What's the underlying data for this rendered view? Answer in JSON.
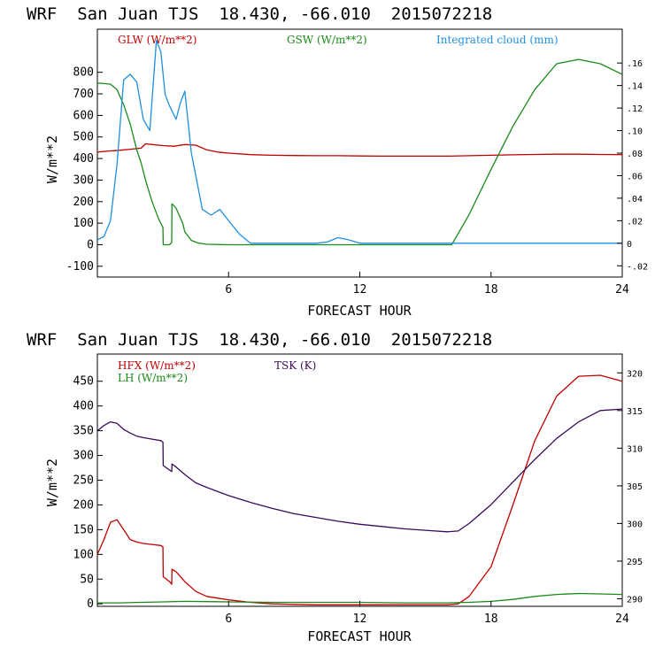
{
  "colors": {
    "red": "#c00000",
    "green": "#1a8a1a",
    "blue": "#1f8fe0",
    "purple": "#3a0a5a"
  },
  "chart_data": [
    {
      "type": "line",
      "title": "WRF  San Juan TJS  18.430, -66.010  2015072218",
      "xlabel": "FORECAST HOUR",
      "ylabel": "W/m**2",
      "xlim": [
        0,
        24
      ],
      "ylim": [
        -150,
        1000
      ],
      "y2lim": [
        -0.03,
        0.19
      ],
      "xticks": [
        6,
        12,
        18,
        24
      ],
      "xtick_labels": [
        "6",
        "12",
        "18",
        "24"
      ],
      "yticks": [
        -100,
        0,
        100,
        200,
        300,
        400,
        500,
        600,
        700,
        800
      ],
      "ytick_labels": [
        "-100",
        "0",
        "100",
        "200",
        "300",
        "400",
        "500",
        "600",
        "700",
        "800"
      ],
      "y2ticks": [
        -0.02,
        0,
        0.02,
        0.04,
        0.06,
        0.08,
        0.1,
        0.12,
        0.14,
        0.16
      ],
      "y2tick_labels": [
        "-.02",
        "0",
        ".02",
        ".04",
        ".06",
        ".08",
        ".10",
        ".12",
        ".14",
        ".16"
      ],
      "series": [
        {
          "name": "GLW (W/m**2)",
          "color": "#c00000",
          "axis": "left",
          "x": [
            0,
            0.5,
            1,
            1.5,
            2,
            2.2,
            2.5,
            3,
            3.5,
            4,
            4.5,
            5,
            5.5,
            6,
            7,
            8,
            9,
            10,
            11,
            12,
            13,
            14,
            15,
            16,
            17,
            18,
            19,
            20,
            21,
            22,
            23,
            24
          ],
          "y": [
            430,
            435,
            438,
            443,
            448,
            468,
            465,
            460,
            457,
            465,
            462,
            440,
            430,
            425,
            418,
            415,
            414,
            413,
            413,
            412,
            411,
            411,
            411,
            411,
            413,
            415,
            417,
            419,
            420,
            420,
            419,
            418
          ]
        },
        {
          "name": "GSW (W/m**2)",
          "color": "#1a8a1a",
          "axis": "left",
          "x": [
            0,
            0.3,
            0.6,
            0.9,
            1.2,
            1.5,
            1.8,
            2,
            2.2,
            2.5,
            2.8,
            3.0,
            3.01,
            3.3,
            3.4,
            3.41,
            3.6,
            3.9,
            4.0,
            4.3,
            4.6,
            5,
            6,
            8,
            10,
            12,
            14,
            16,
            16.2,
            17,
            18,
            19,
            20,
            21,
            22,
            23,
            24
          ],
          "y": [
            750,
            748,
            745,
            720,
            650,
            560,
            440,
            380,
            300,
            200,
            120,
            80,
            0,
            0,
            10,
            190,
            170,
            100,
            60,
            20,
            8,
            2,
            0,
            0,
            0,
            0,
            0,
            0,
            0,
            140,
            350,
            550,
            720,
            840,
            860,
            840,
            790
          ]
        },
        {
          "name": "Integrated cloud (mm)",
          "color": "#1f8fe0",
          "axis": "right",
          "x": [
            0,
            0.3,
            0.6,
            0.9,
            1.2,
            1.5,
            1.8,
            2.1,
            2.4,
            2.7,
            2.9,
            3.1,
            3.3,
            3.6,
            3.8,
            4.0,
            4.3,
            4.5,
            4.8,
            5.2,
            5.6,
            6,
            6.5,
            7,
            7.5,
            8,
            9,
            10,
            10.5,
            11,
            11.5,
            12,
            13,
            14,
            16,
            18,
            20,
            22,
            24
          ],
          "y": [
            0.003,
            0.006,
            0.02,
            0.07,
            0.145,
            0.15,
            0.143,
            0.11,
            0.1,
            0.18,
            0.17,
            0.132,
            0.122,
            0.11,
            0.125,
            0.135,
            0.08,
            0.06,
            0.03,
            0.025,
            0.03,
            0.02,
            0.008,
            0.0,
            0.0,
            0.0,
            0.0,
            0.0,
            0.001,
            0.005,
            0.003,
            0.0,
            0.0,
            0.0,
            0.0,
            0.0,
            0.0,
            0.0,
            0.0
          ]
        }
      ],
      "legend": [
        "GLW (W/m**2)",
        "GSW (W/m**2)",
        "Integrated cloud (mm)"
      ]
    },
    {
      "type": "line",
      "title": "WRF  San Juan TJS  18.430, -66.010  2015072218",
      "xlabel": "FORECAST HOUR",
      "ylabel": "W/m**2",
      "xlim": [
        0,
        24
      ],
      "ylim": [
        -5,
        505
      ],
      "y2lim": [
        289,
        322.5
      ],
      "xticks": [
        6,
        12,
        18,
        24
      ],
      "xtick_labels": [
        "6",
        "12",
        "18",
        "24"
      ],
      "yticks": [
        0,
        50,
        100,
        150,
        200,
        250,
        300,
        350,
        400,
        450
      ],
      "ytick_labels": [
        "0",
        "50",
        "100",
        "150",
        "200",
        "250",
        "300",
        "350",
        "400",
        "450"
      ],
      "y2ticks": [
        290,
        295,
        300,
        305,
        310,
        315,
        320
      ],
      "y2tick_labels": [
        "290",
        "295",
        "300",
        "305",
        "310",
        "315",
        "320"
      ],
      "series": [
        {
          "name": "HFX (W/m**2)",
          "color": "#c00000",
          "axis": "left",
          "x": [
            0,
            0.3,
            0.6,
            0.9,
            1.2,
            1.5,
            1.8,
            2.1,
            2.5,
            2.9,
            3.0,
            3.01,
            3.3,
            3.4,
            3.41,
            3.6,
            4.0,
            4.5,
            5,
            6,
            7,
            8,
            9,
            10,
            12,
            14,
            16,
            16.5,
            17,
            18,
            19,
            20,
            21,
            22,
            23,
            24
          ],
          "y": [
            100,
            130,
            165,
            170,
            150,
            130,
            125,
            122,
            120,
            118,
            115,
            55,
            45,
            40,
            70,
            65,
            45,
            25,
            15,
            8,
            3,
            0,
            -1,
            -2,
            -2,
            -2,
            -2,
            0,
            15,
            75,
            200,
            330,
            420,
            460,
            462,
            450
          ]
        },
        {
          "name": "LH (W/m**2)",
          "color": "#1a8a1a",
          "axis": "left",
          "x": [
            0,
            1,
            2,
            3,
            4,
            6,
            8,
            10,
            12,
            14,
            16,
            17,
            18,
            19,
            20,
            21,
            22,
            23,
            24
          ],
          "y": [
            2,
            2,
            3,
            4,
            5,
            4,
            3,
            3,
            3,
            2,
            2,
            3,
            5,
            9,
            15,
            19,
            21,
            20,
            19
          ]
        },
        {
          "name": "TSK (K)",
          "color": "#3a0a5a",
          "axis": "right",
          "x": [
            0,
            0.3,
            0.6,
            0.9,
            1.2,
            1.5,
            1.8,
            2.1,
            2.5,
            2.9,
            3.0,
            3.01,
            3.3,
            3.4,
            3.41,
            3.6,
            4.0,
            4.5,
            5,
            6,
            7,
            8,
            9,
            10,
            11,
            12,
            13,
            14,
            15,
            16,
            16.5,
            17,
            18,
            19,
            20,
            21,
            22,
            23,
            24
          ],
          "y": [
            312.3,
            313.0,
            313.5,
            313.3,
            312.5,
            312.0,
            311.6,
            311.4,
            311.2,
            311.0,
            310.8,
            307.7,
            307.1,
            306.9,
            307.9,
            307.5,
            306.5,
            305.4,
            304.8,
            303.7,
            302.8,
            302.0,
            301.3,
            300.8,
            300.3,
            299.9,
            299.6,
            299.3,
            299.1,
            298.9,
            299.0,
            300.0,
            302.5,
            305.5,
            308.5,
            311.3,
            313.5,
            315.0,
            315.2
          ]
        }
      ],
      "legend": [
        "HFX (W/m**2)",
        "LH (W/m**2)",
        "TSK (K)"
      ]
    }
  ]
}
